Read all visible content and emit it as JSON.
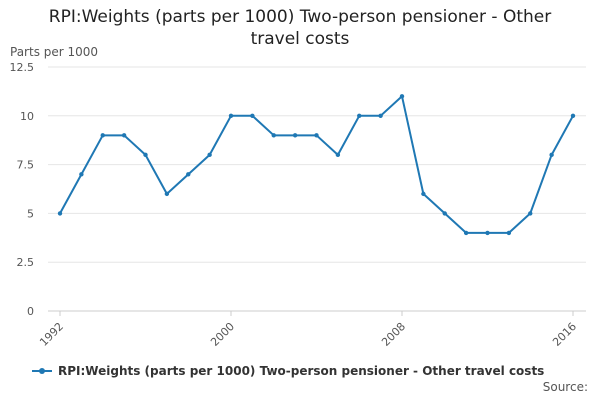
{
  "chart_data": {
    "type": "line",
    "title_lines": [
      "RPI:Weights (parts per 1000) Two-person pensioner - Other",
      "travel costs"
    ],
    "ylabel": "Parts per 1000",
    "xlabel": "",
    "x_range": [
      1992,
      2016
    ],
    "ylim": [
      0,
      12.5
    ],
    "y_ticks": [
      "0",
      "2.5",
      "5",
      "7.5",
      "10",
      "12.5"
    ],
    "x_ticks": [
      "1992",
      "2000",
      "2008",
      "2016"
    ],
    "grid": "horizontal",
    "legend_position": "bottom-left",
    "series": [
      {
        "name": "RPI:Weights (parts per 1000) Two-person pensioner - Other travel costs",
        "color": "#1f78b4",
        "x": [
          1992,
          1993,
          1994,
          1995,
          1996,
          1997,
          1998,
          1999,
          2000,
          2001,
          2002,
          2003,
          2004,
          2005,
          2006,
          2007,
          2008,
          2009,
          2010,
          2011,
          2012,
          2013,
          2014,
          2015,
          2016
        ],
        "values": [
          5,
          7,
          9,
          9,
          8,
          6,
          7,
          8,
          10,
          10,
          9,
          9,
          9,
          8,
          10,
          10,
          11,
          6,
          5,
          4,
          4,
          4,
          5,
          8,
          10
        ]
      }
    ]
  },
  "source_label": "Source:"
}
